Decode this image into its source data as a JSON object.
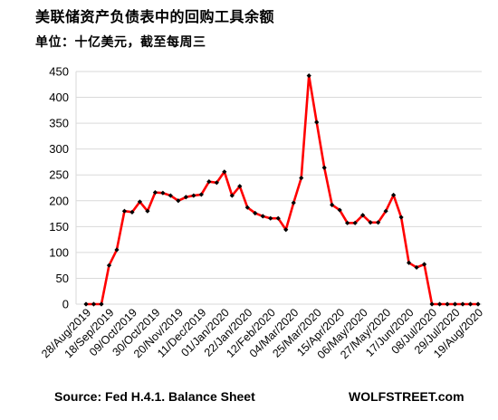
{
  "chart_data": {
    "type": "line",
    "title": "美联储资产负债表中的回购工具余额",
    "subtitle": "单位：十亿美元，截至每周三",
    "source": "Source: Fed H.4.1. Balance Sheet",
    "brand": "WOLFSTREET.com",
    "ylim": [
      0,
      450
    ],
    "yticks": [
      0,
      50,
      100,
      150,
      200,
      250,
      300,
      350,
      400,
      450
    ],
    "grid": true,
    "legend": "none",
    "line_color": "#ff0000",
    "marker_color": "#000000",
    "x_tick_labels": [
      "28/Aug/2019",
      "18/Sep/2019",
      "09/Oct/2019",
      "30/Oct/2019",
      "20/Nov/2019",
      "11/Dec/2019",
      "01/Jan/2020",
      "22/Jan/2020",
      "12/Feb/2020",
      "04/Mar/2020",
      "25/Mar/2020",
      "15/Apr/2020",
      "06/May/2020",
      "27/May/2020",
      "17/Jun/2020",
      "08/Jul/2020",
      "29/Jul/2020",
      "19/Aug/2020"
    ],
    "series": [
      {
        "values": [
          0,
          0,
          0,
          75,
          105,
          180,
          178,
          198,
          180,
          216,
          215,
          210,
          200,
          207,
          210,
          212,
          237,
          235,
          256,
          210,
          228,
          187,
          176,
          170,
          166,
          166,
          144,
          196,
          244,
          442,
          352,
          264,
          192,
          182,
          157,
          157,
          172,
          158,
          158,
          180,
          211,
          168,
          80,
          71,
          77,
          0,
          0,
          0,
          0,
          0,
          0,
          0
        ]
      }
    ]
  }
}
